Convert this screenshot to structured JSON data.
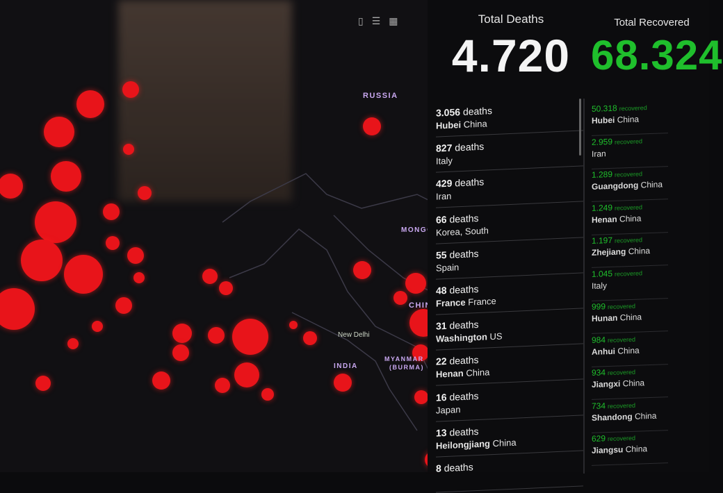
{
  "map": {
    "labels": {
      "russia": "RUSSIA",
      "mongolia": "MONGO",
      "china": "CHIN.",
      "india": "INDIA",
      "myanmar": "MYANMAR",
      "burma": "(BURMA)",
      "new_delhi": "New Delhi"
    },
    "bubble_color": "#e8141a"
  },
  "toolbar": {
    "icons": [
      "bookmark-icon",
      "list-icon",
      "grid-icon"
    ]
  },
  "deaths": {
    "label": "Total Deaths",
    "total": "4.720",
    "color": "#ffffff",
    "unit": "deaths",
    "items": [
      {
        "count": "3.056",
        "place": "Hubei",
        "country": "China"
      },
      {
        "count": "827",
        "place": "",
        "country": "Italy"
      },
      {
        "count": "429",
        "place": "",
        "country": "Iran"
      },
      {
        "count": "66",
        "place": "",
        "country": "Korea, South"
      },
      {
        "count": "55",
        "place": "",
        "country": "Spain"
      },
      {
        "count": "48",
        "place": "France",
        "country": "France"
      },
      {
        "count": "31",
        "place": "Washington",
        "country": "US"
      },
      {
        "count": "22",
        "place": "Henan",
        "country": "China"
      },
      {
        "count": "16",
        "place": "",
        "country": "Japan"
      },
      {
        "count": "13",
        "place": "Heilongjiang",
        "country": "China"
      },
      {
        "count": "8",
        "place": "",
        "country": ""
      }
    ]
  },
  "recovered": {
    "label": "Total Recovered",
    "total": "68.324",
    "color": "#1fbf2c",
    "unit": "recovered",
    "items": [
      {
        "count": "50.318",
        "place": "Hubei",
        "country": "China"
      },
      {
        "count": "2.959",
        "place": "",
        "country": "Iran"
      },
      {
        "count": "1.289",
        "place": "Guangdong",
        "country": "China"
      },
      {
        "count": "1.249",
        "place": "Henan",
        "country": "China"
      },
      {
        "count": "1.197",
        "place": "Zhejiang",
        "country": "China"
      },
      {
        "count": "1.045",
        "place": "",
        "country": "Italy"
      },
      {
        "count": "999",
        "place": "Hunan",
        "country": "China"
      },
      {
        "count": "984",
        "place": "Anhui",
        "country": "China"
      },
      {
        "count": "934",
        "place": "Jiangxi",
        "country": "China"
      },
      {
        "count": "734",
        "place": "Shandong",
        "country": "China"
      },
      {
        "count": "629",
        "place": "Jiangsu",
        "country": "China"
      }
    ]
  }
}
